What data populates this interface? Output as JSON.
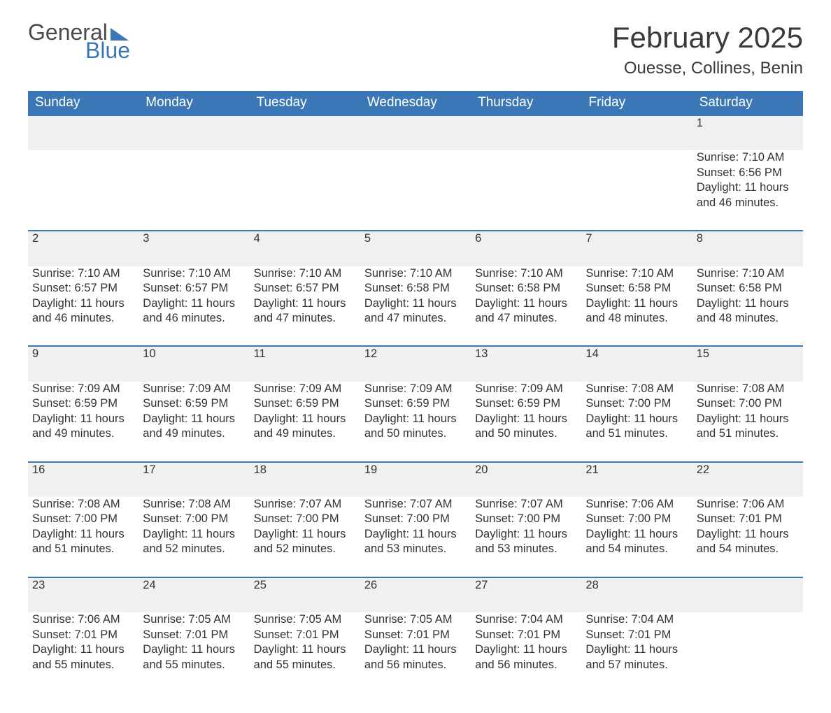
{
  "logo": {
    "text1": "General",
    "text2": "Blue"
  },
  "title": "February 2025",
  "location": "Ouesse, Collines, Benin",
  "colors": {
    "header_bg": "#3b77b7",
    "header_fg": "#ffffff",
    "row_border": "#3b77b7",
    "daynum_bg": "#f0f0f0",
    "text": "#333333",
    "page_bg": "#ffffff"
  },
  "typography": {
    "title_fontsize": 42,
    "location_fontsize": 24,
    "dow_fontsize": 19,
    "body_fontsize": 16.5,
    "font_family": "Arial"
  },
  "layout": {
    "columns": 7,
    "rows": 5,
    "first_day_index": 6
  },
  "daysOfWeek": [
    "Sunday",
    "Monday",
    "Tuesday",
    "Wednesday",
    "Thursday",
    "Friday",
    "Saturday"
  ],
  "labels": {
    "sunrise": "Sunrise: ",
    "sunset": "Sunset: ",
    "daylight": "Daylight: "
  },
  "days": [
    {
      "n": 1,
      "sunrise": "7:10 AM",
      "sunset": "6:56 PM",
      "daylight": "11 hours and 46 minutes."
    },
    {
      "n": 2,
      "sunrise": "7:10 AM",
      "sunset": "6:57 PM",
      "daylight": "11 hours and 46 minutes."
    },
    {
      "n": 3,
      "sunrise": "7:10 AM",
      "sunset": "6:57 PM",
      "daylight": "11 hours and 46 minutes."
    },
    {
      "n": 4,
      "sunrise": "7:10 AM",
      "sunset": "6:57 PM",
      "daylight": "11 hours and 47 minutes."
    },
    {
      "n": 5,
      "sunrise": "7:10 AM",
      "sunset": "6:58 PM",
      "daylight": "11 hours and 47 minutes."
    },
    {
      "n": 6,
      "sunrise": "7:10 AM",
      "sunset": "6:58 PM",
      "daylight": "11 hours and 47 minutes."
    },
    {
      "n": 7,
      "sunrise": "7:10 AM",
      "sunset": "6:58 PM",
      "daylight": "11 hours and 48 minutes."
    },
    {
      "n": 8,
      "sunrise": "7:10 AM",
      "sunset": "6:58 PM",
      "daylight": "11 hours and 48 minutes."
    },
    {
      "n": 9,
      "sunrise": "7:09 AM",
      "sunset": "6:59 PM",
      "daylight": "11 hours and 49 minutes."
    },
    {
      "n": 10,
      "sunrise": "7:09 AM",
      "sunset": "6:59 PM",
      "daylight": "11 hours and 49 minutes."
    },
    {
      "n": 11,
      "sunrise": "7:09 AM",
      "sunset": "6:59 PM",
      "daylight": "11 hours and 49 minutes."
    },
    {
      "n": 12,
      "sunrise": "7:09 AM",
      "sunset": "6:59 PM",
      "daylight": "11 hours and 50 minutes."
    },
    {
      "n": 13,
      "sunrise": "7:09 AM",
      "sunset": "6:59 PM",
      "daylight": "11 hours and 50 minutes."
    },
    {
      "n": 14,
      "sunrise": "7:08 AM",
      "sunset": "7:00 PM",
      "daylight": "11 hours and 51 minutes."
    },
    {
      "n": 15,
      "sunrise": "7:08 AM",
      "sunset": "7:00 PM",
      "daylight": "11 hours and 51 minutes."
    },
    {
      "n": 16,
      "sunrise": "7:08 AM",
      "sunset": "7:00 PM",
      "daylight": "11 hours and 51 minutes."
    },
    {
      "n": 17,
      "sunrise": "7:08 AM",
      "sunset": "7:00 PM",
      "daylight": "11 hours and 52 minutes."
    },
    {
      "n": 18,
      "sunrise": "7:07 AM",
      "sunset": "7:00 PM",
      "daylight": "11 hours and 52 minutes."
    },
    {
      "n": 19,
      "sunrise": "7:07 AM",
      "sunset": "7:00 PM",
      "daylight": "11 hours and 53 minutes."
    },
    {
      "n": 20,
      "sunrise": "7:07 AM",
      "sunset": "7:00 PM",
      "daylight": "11 hours and 53 minutes."
    },
    {
      "n": 21,
      "sunrise": "7:06 AM",
      "sunset": "7:00 PM",
      "daylight": "11 hours and 54 minutes."
    },
    {
      "n": 22,
      "sunrise": "7:06 AM",
      "sunset": "7:01 PM",
      "daylight": "11 hours and 54 minutes."
    },
    {
      "n": 23,
      "sunrise": "7:06 AM",
      "sunset": "7:01 PM",
      "daylight": "11 hours and 55 minutes."
    },
    {
      "n": 24,
      "sunrise": "7:05 AM",
      "sunset": "7:01 PM",
      "daylight": "11 hours and 55 minutes."
    },
    {
      "n": 25,
      "sunrise": "7:05 AM",
      "sunset": "7:01 PM",
      "daylight": "11 hours and 55 minutes."
    },
    {
      "n": 26,
      "sunrise": "7:05 AM",
      "sunset": "7:01 PM",
      "daylight": "11 hours and 56 minutes."
    },
    {
      "n": 27,
      "sunrise": "7:04 AM",
      "sunset": "7:01 PM",
      "daylight": "11 hours and 56 minutes."
    },
    {
      "n": 28,
      "sunrise": "7:04 AM",
      "sunset": "7:01 PM",
      "daylight": "11 hours and 57 minutes."
    }
  ]
}
